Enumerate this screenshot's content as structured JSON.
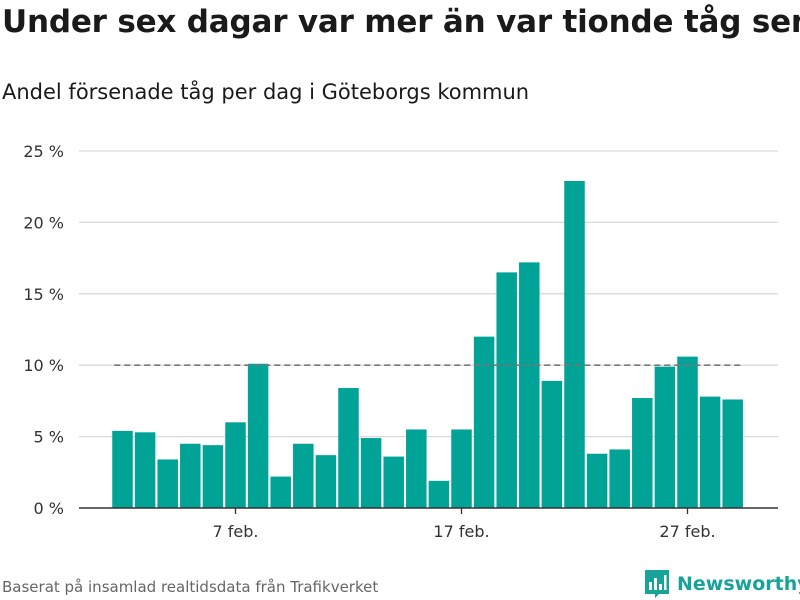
{
  "header": {
    "title": "Under sex dagar var mer än var tionde tåg sent",
    "subtitle": "Andel försenade tåg per dag i Göteborgs kommun"
  },
  "footer": {
    "source": "Baserat på insamlad realtidsdata från Trafikverket",
    "brand": "Newsworthy"
  },
  "colors": {
    "bar": "#00a396",
    "reference_line": "#777777",
    "grid": "#d9d9d9",
    "brand": "#17a39a"
  },
  "chart_data": {
    "type": "bar",
    "x": [
      "2 feb.",
      "3 feb.",
      "4 feb.",
      "5 feb.",
      "6 feb.",
      "7 feb.",
      "8 feb.",
      "9 feb.",
      "10 feb.",
      "11 feb.",
      "12 feb.",
      "13 feb.",
      "14 feb.",
      "15 feb.",
      "16 feb.",
      "17 feb.",
      "18 feb.",
      "19 feb.",
      "20 feb.",
      "21 feb.",
      "22 feb.",
      "23 feb.",
      "24 feb.",
      "25 feb.",
      "26 feb.",
      "27 feb.",
      "28 feb.",
      "29 feb."
    ],
    "values": [
      5.4,
      5.3,
      3.4,
      4.5,
      4.4,
      6.0,
      10.1,
      2.2,
      4.5,
      3.7,
      8.4,
      4.9,
      3.6,
      5.5,
      1.9,
      5.5,
      12.0,
      16.5,
      17.2,
      8.9,
      22.9,
      3.8,
      4.1,
      7.7,
      9.9,
      10.6,
      7.8,
      7.6
    ],
    "reference_line": 10,
    "ylim": [
      0,
      25
    ],
    "yticks": [
      0,
      5,
      10,
      15,
      20,
      25
    ],
    "ytick_labels": [
      "0 %",
      "5 %",
      "10 %",
      "15 %",
      "20 %",
      "25 %"
    ],
    "xtick_labels": [
      {
        "at": "7 feb.",
        "label": "7 feb."
      },
      {
        "at": "17 feb.",
        "label": "17 feb."
      },
      {
        "at": "27 feb.",
        "label": "27 feb."
      }
    ],
    "grid": true,
    "legend": "none"
  }
}
